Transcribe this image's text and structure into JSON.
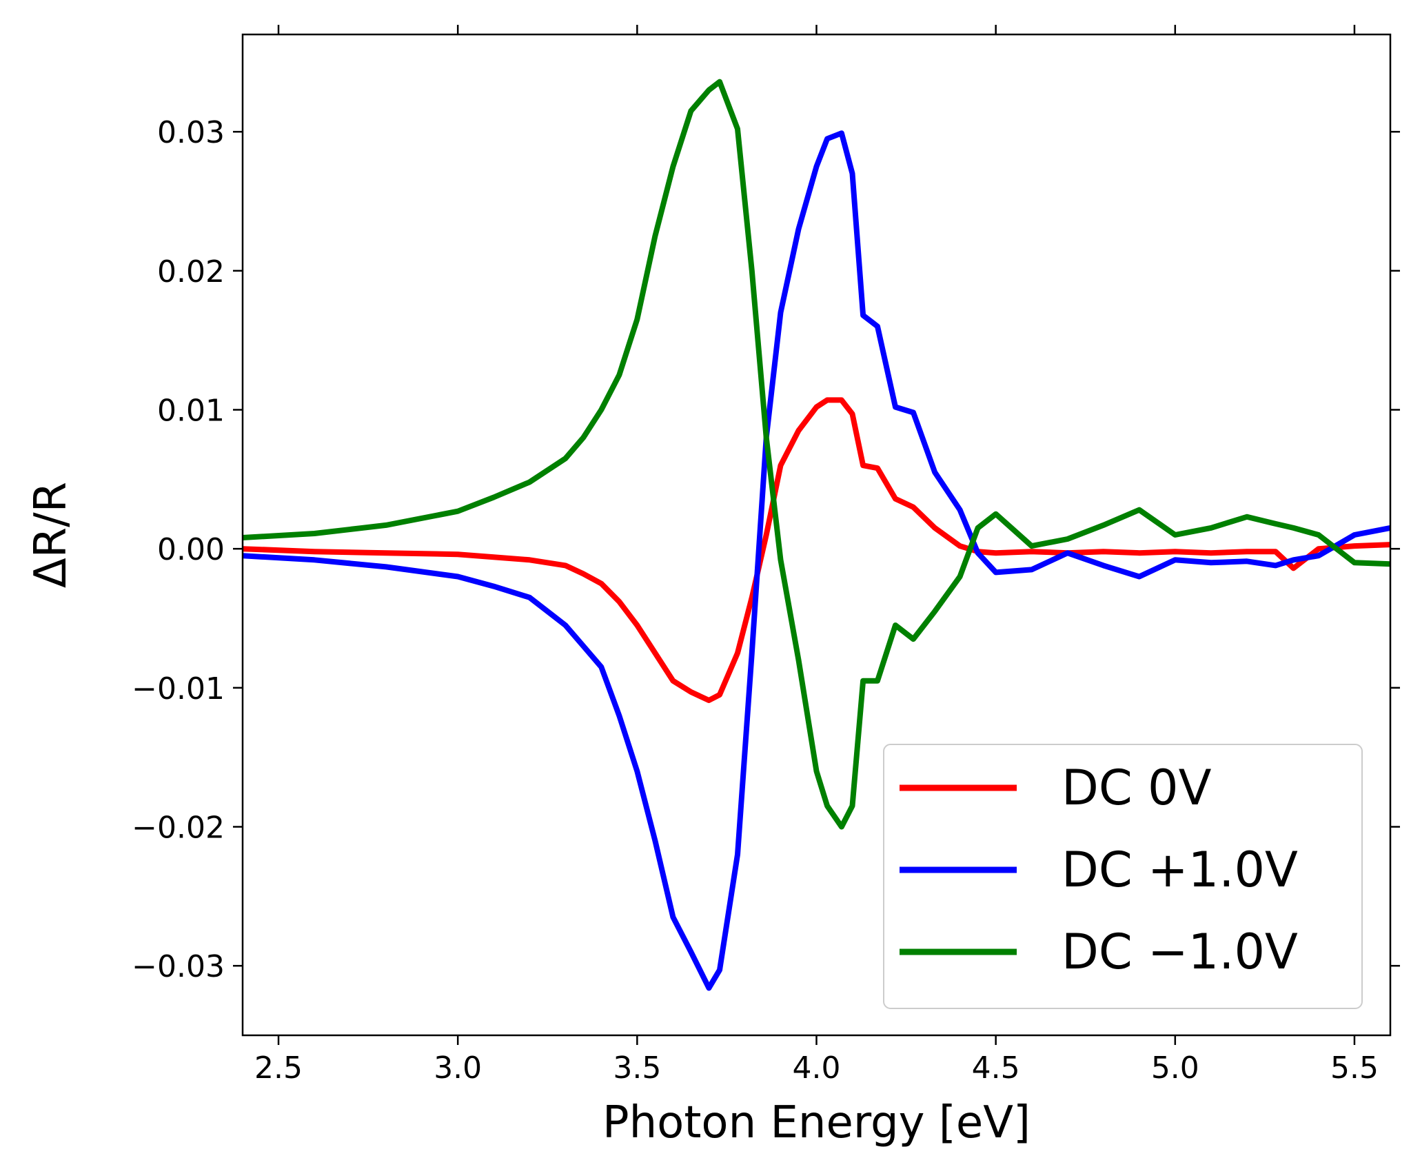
{
  "chart_data": {
    "type": "line",
    "title": "",
    "xlabel": "Photon Energy [eV]",
    "ylabel": "ΔR/R",
    "xlim": [
      2.4,
      5.6
    ],
    "ylim": [
      -0.035,
      0.037
    ],
    "xticks": [
      2.5,
      3.0,
      3.5,
      4.0,
      4.5,
      5.0,
      5.5
    ],
    "xtick_labels": [
      "2.5",
      "3.0",
      "3.5",
      "4.0",
      "4.5",
      "5.0",
      "5.5"
    ],
    "yticks": [
      -0.03,
      -0.02,
      -0.01,
      0.0,
      0.01,
      0.02,
      0.03
    ],
    "ytick_labels": [
      "−0.03",
      "−0.02",
      "−0.01",
      "0.00",
      "0.01",
      "0.02",
      "0.03"
    ],
    "grid": false,
    "legend_position": "lower-right",
    "series": [
      {
        "name": "DC 0V",
        "color": "#ff0000",
        "x": [
          2.4,
          2.6,
          2.8,
          3.0,
          3.1,
          3.2,
          3.3,
          3.35,
          3.4,
          3.45,
          3.5,
          3.55,
          3.6,
          3.65,
          3.7,
          3.73,
          3.78,
          3.82,
          3.86,
          3.9,
          3.95,
          4.0,
          4.03,
          4.07,
          4.1,
          4.13,
          4.17,
          4.22,
          4.27,
          4.33,
          4.4,
          4.45,
          4.5,
          4.6,
          4.7,
          4.8,
          4.9,
          5.0,
          5.1,
          5.2,
          5.28,
          5.33,
          5.4,
          5.5,
          5.6
        ],
        "y": [
          0.0,
          -0.0002,
          -0.0003,
          -0.0004,
          -0.0006,
          -0.0008,
          -0.0012,
          -0.0018,
          -0.0025,
          -0.0038,
          -0.0055,
          -0.0075,
          -0.0095,
          -0.0103,
          -0.0109,
          -0.0105,
          -0.0075,
          -0.0035,
          0.001,
          0.006,
          0.0085,
          0.0102,
          0.0107,
          0.0107,
          0.0097,
          0.006,
          0.0058,
          0.0036,
          0.003,
          0.0015,
          0.0002,
          -0.0002,
          -0.0003,
          -0.0002,
          -0.0003,
          -0.0002,
          -0.0003,
          -0.0002,
          -0.0003,
          -0.0002,
          -0.0002,
          -0.0014,
          0.0,
          0.0002,
          0.0003
        ]
      },
      {
        "name": "DC +1.0V",
        "color": "#0000ff",
        "x": [
          2.4,
          2.6,
          2.8,
          3.0,
          3.1,
          3.2,
          3.3,
          3.35,
          3.4,
          3.45,
          3.5,
          3.55,
          3.6,
          3.65,
          3.7,
          3.73,
          3.78,
          3.82,
          3.86,
          3.9,
          3.95,
          4.0,
          4.03,
          4.07,
          4.1,
          4.13,
          4.17,
          4.22,
          4.27,
          4.33,
          4.4,
          4.45,
          4.5,
          4.6,
          4.7,
          4.8,
          4.9,
          5.0,
          5.1,
          5.2,
          5.28,
          5.33,
          5.4,
          5.5,
          5.6
        ],
        "y": [
          -0.0005,
          -0.0008,
          -0.0013,
          -0.002,
          -0.0027,
          -0.0035,
          -0.0055,
          -0.007,
          -0.0085,
          -0.012,
          -0.016,
          -0.021,
          -0.0265,
          -0.029,
          -0.0316,
          -0.0303,
          -0.022,
          -0.0075,
          0.008,
          0.017,
          0.023,
          0.0275,
          0.0295,
          0.0299,
          0.027,
          0.0168,
          0.016,
          0.0102,
          0.0098,
          0.0055,
          0.0028,
          -0.0003,
          -0.0017,
          -0.0015,
          -0.0003,
          -0.0012,
          -0.002,
          -0.0008,
          -0.001,
          -0.0009,
          -0.0012,
          -0.0008,
          -0.0005,
          0.001,
          0.0015
        ]
      },
      {
        "name": "DC −1.0V",
        "color": "#008000",
        "x": [
          2.4,
          2.6,
          2.8,
          3.0,
          3.1,
          3.2,
          3.3,
          3.35,
          3.4,
          3.45,
          3.5,
          3.55,
          3.6,
          3.65,
          3.7,
          3.73,
          3.78,
          3.82,
          3.86,
          3.9,
          3.95,
          4.0,
          4.03,
          4.07,
          4.1,
          4.13,
          4.17,
          4.22,
          4.27,
          4.33,
          4.4,
          4.45,
          4.5,
          4.6,
          4.7,
          4.8,
          4.9,
          5.0,
          5.1,
          5.2,
          5.28,
          5.33,
          5.4,
          5.5,
          5.6
        ],
        "y": [
          0.0008,
          0.0011,
          0.0017,
          0.0027,
          0.0037,
          0.0048,
          0.0065,
          0.008,
          0.01,
          0.0125,
          0.0165,
          0.0225,
          0.0275,
          0.0315,
          0.033,
          0.0336,
          0.0302,
          0.02,
          0.008,
          -0.0008,
          -0.008,
          -0.016,
          -0.0185,
          -0.02,
          -0.0185,
          -0.0095,
          -0.0095,
          -0.0055,
          -0.0065,
          -0.0045,
          -0.002,
          0.0015,
          0.0025,
          0.0002,
          0.0007,
          0.0017,
          0.0028,
          0.001,
          0.0015,
          0.0023,
          0.0018,
          0.0015,
          0.001,
          -0.001,
          -0.0011
        ]
      }
    ]
  }
}
